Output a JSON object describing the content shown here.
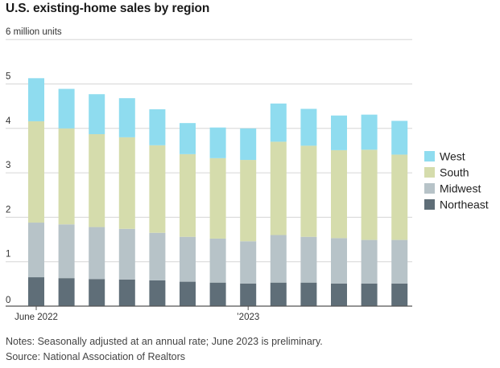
{
  "title": "U.S. existing-home sales by region",
  "notes": "Notes: Seasonally adjusted at an annual rate; June 2023 is preliminary.",
  "source": "Source: National Association of Realtors",
  "colors": {
    "Northeast": "#5f6e78",
    "Midwest": "#b7c3c8",
    "South": "#d5dcac",
    "West": "#8fdcef",
    "grid": "#d6d6d6",
    "axis": "#555555"
  },
  "chart_data": {
    "type": "bar",
    "stacked": true,
    "title": "U.S. existing-home sales by region",
    "ylabel": "",
    "ylim": [
      0,
      6
    ],
    "yticks": [
      0,
      1,
      2,
      3,
      4,
      5,
      6
    ],
    "ytick_labels": [
      "0",
      "1",
      "2",
      "3",
      "4",
      "5",
      "6 million units"
    ],
    "categories": [
      "2022-06",
      "2022-07",
      "2022-08",
      "2022-09",
      "2022-10",
      "2022-11",
      "2022-12",
      "2023-01",
      "2023-02",
      "2023-03",
      "2023-04",
      "2023-05",
      "2023-06"
    ],
    "xtick_labels": [
      {
        "category": "2022-06",
        "label": "June 2022"
      },
      {
        "category": "2023-01",
        "label": "’2023"
      }
    ],
    "grid": true,
    "legend": "right",
    "series": [
      {
        "name": "Northeast",
        "values": [
          0.65,
          0.63,
          0.61,
          0.6,
          0.58,
          0.55,
          0.53,
          0.51,
          0.53,
          0.53,
          0.51,
          0.51,
          0.51
        ]
      },
      {
        "name": "Midwest",
        "values": [
          1.23,
          1.21,
          1.17,
          1.14,
          1.07,
          1.01,
          0.99,
          0.95,
          1.07,
          1.03,
          1.02,
          0.98,
          0.98
        ]
      },
      {
        "name": "South",
        "values": [
          2.28,
          2.16,
          2.09,
          2.06,
          1.97,
          1.86,
          1.81,
          1.83,
          2.1,
          2.05,
          1.98,
          2.03,
          1.92
        ]
      },
      {
        "name": "West",
        "values": [
          0.97,
          0.89,
          0.9,
          0.88,
          0.81,
          0.7,
          0.69,
          0.71,
          0.86,
          0.83,
          0.78,
          0.79,
          0.76
        ]
      }
    ],
    "legend_order": [
      "West",
      "South",
      "Midwest",
      "Northeast"
    ]
  }
}
